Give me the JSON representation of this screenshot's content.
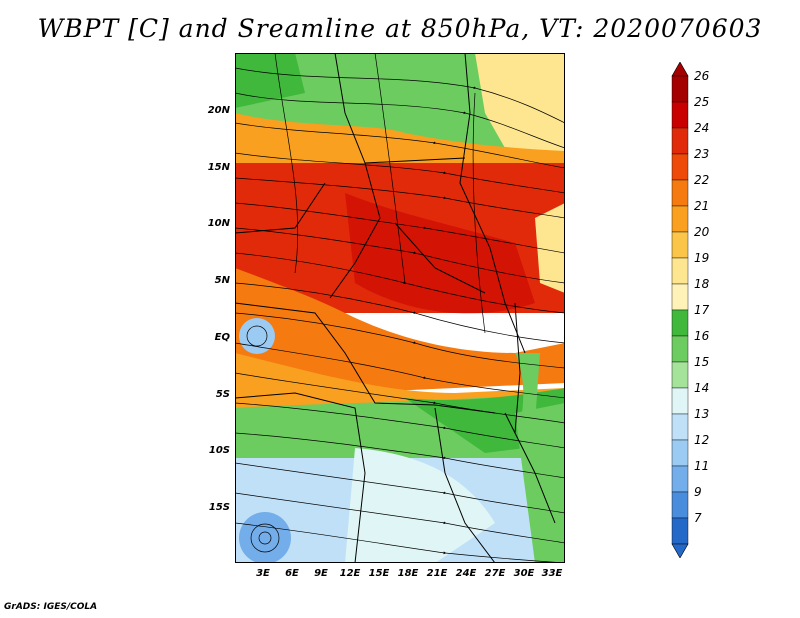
{
  "title": "WBPT [C] and Sreamline at 850hPa, VT: 2020070603",
  "credit": "GrADS: IGES/COLA",
  "lat_labels": [
    "20N",
    "15N",
    "10N",
    "5N",
    "EQ",
    "5S",
    "10S",
    "15S"
  ],
  "lon_labels": [
    "3E",
    "6E",
    "9E",
    "12E",
    "15E",
    "18E",
    "21E",
    "24E",
    "27E",
    "30E",
    "33E"
  ],
  "colorbar_labels": [
    "26",
    "25",
    "24",
    "23",
    "22",
    "21",
    "20",
    "19",
    "18",
    "17",
    "16",
    "15",
    "14",
    "13",
    "12",
    "11",
    "9",
    "7"
  ],
  "colorbar_colors": [
    "#a50000",
    "#c80000",
    "#e12a0a",
    "#ee4a0a",
    "#f57a10",
    "#f9a020",
    "#fbc54a",
    "#fde68f",
    "#fff2b8",
    "#3fb83b",
    "#6ccc5f",
    "#a6e39a",
    "#e0f5f5",
    "#bfe0f7",
    "#9bcaf2",
    "#74aeea",
    "#4a8ddc",
    "#2468c8"
  ]
}
